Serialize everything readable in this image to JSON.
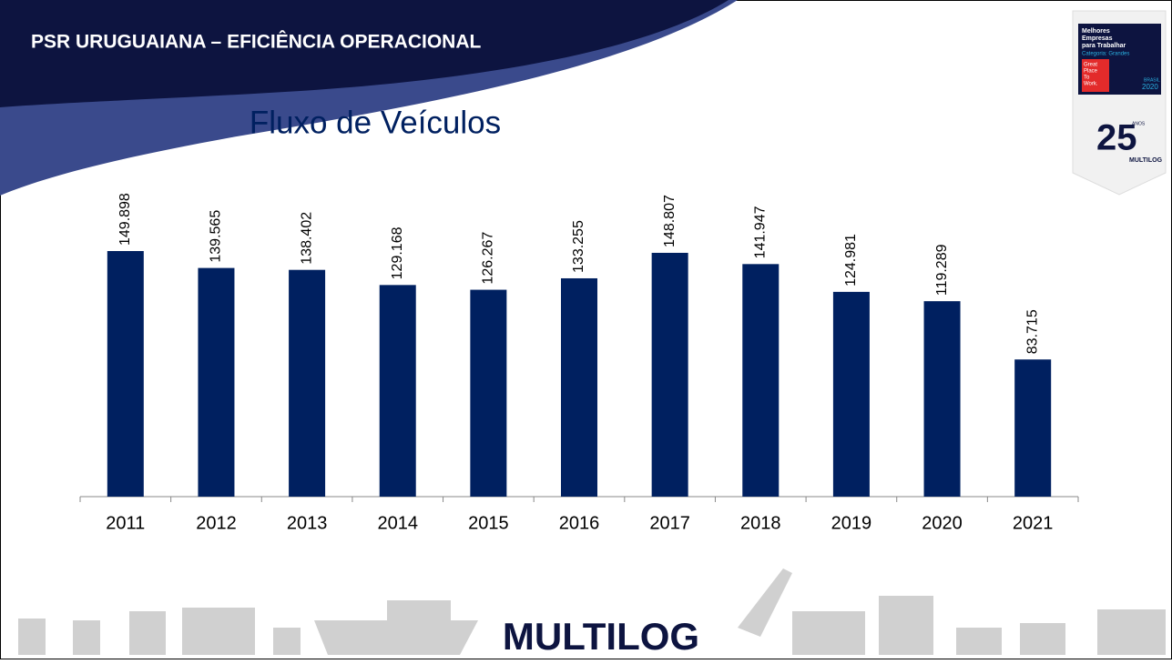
{
  "header": {
    "title": "PSR URUGUAIANA – EFICIÊNCIA OPERACIONAL"
  },
  "badge": {
    "line1": "Melhores",
    "line2": "Empresas",
    "line3": "para Trabalhar",
    "category": "Categoria: Grandes",
    "gptw1": "Great",
    "gptw2": "Place",
    "gptw3": "To",
    "gptw4": "Work.",
    "country": "BRASIL",
    "year": "2020",
    "anniversary": "25",
    "anos": "ANOS",
    "brand": "MULTILOG"
  },
  "footer": {
    "logo": "MULTILOG"
  },
  "chart_data": {
    "type": "bar",
    "title": "Fluxo de Veículos",
    "categories": [
      "2011",
      "2012",
      "2013",
      "2014",
      "2015",
      "2016",
      "2017",
      "2018",
      "2019",
      "2020",
      "2021"
    ],
    "values": [
      149898,
      139565,
      138402,
      129168,
      126267,
      133255,
      148807,
      141947,
      124981,
      119289,
      83715
    ],
    "value_labels": [
      "149.898",
      "139.565",
      "138.402",
      "129.168",
      "126.267",
      "133.255",
      "148.807",
      "141.947",
      "124.981",
      "119.289",
      "83.715"
    ],
    "color": "#002060"
  }
}
